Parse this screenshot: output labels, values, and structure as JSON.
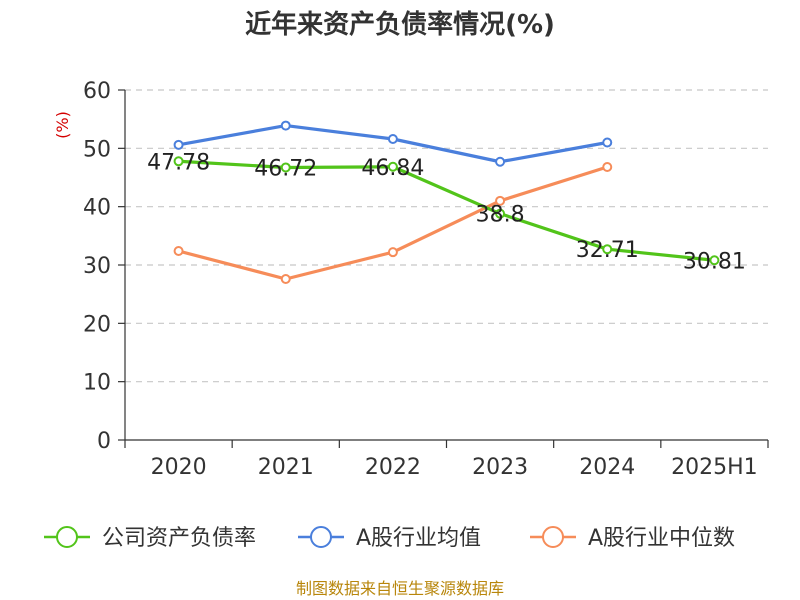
{
  "chart_data": {
    "type": "line",
    "title": "近年来资产负债率情况(%)",
    "ylabel": "(%)",
    "xlabel": "",
    "categories": [
      "2020",
      "2021",
      "2022",
      "2023",
      "2024",
      "2025H1"
    ],
    "ylim": [
      0,
      60
    ],
    "yticks": [
      0,
      10,
      20,
      30,
      40,
      50,
      60
    ],
    "grid": true,
    "legend_position": "bottom",
    "series": [
      {
        "name": "公司资产负债率",
        "color": "#52c41a",
        "values": [
          47.78,
          46.72,
          46.84,
          38.8,
          32.71,
          30.81
        ],
        "labels": [
          "47.78",
          "46.72",
          "46.84",
          "38.8",
          "32.71",
          "30.81"
        ]
      },
      {
        "name": "A股行业均值",
        "color": "#4a7fdc",
        "values": [
          50.6,
          53.9,
          51.6,
          47.7,
          51.0,
          null
        ]
      },
      {
        "name": "A股行业中位数",
        "color": "#f68c59",
        "values": [
          32.4,
          27.6,
          32.2,
          41.0,
          46.8,
          null
        ]
      }
    ],
    "source": "制图数据来自恒生聚源数据库"
  }
}
